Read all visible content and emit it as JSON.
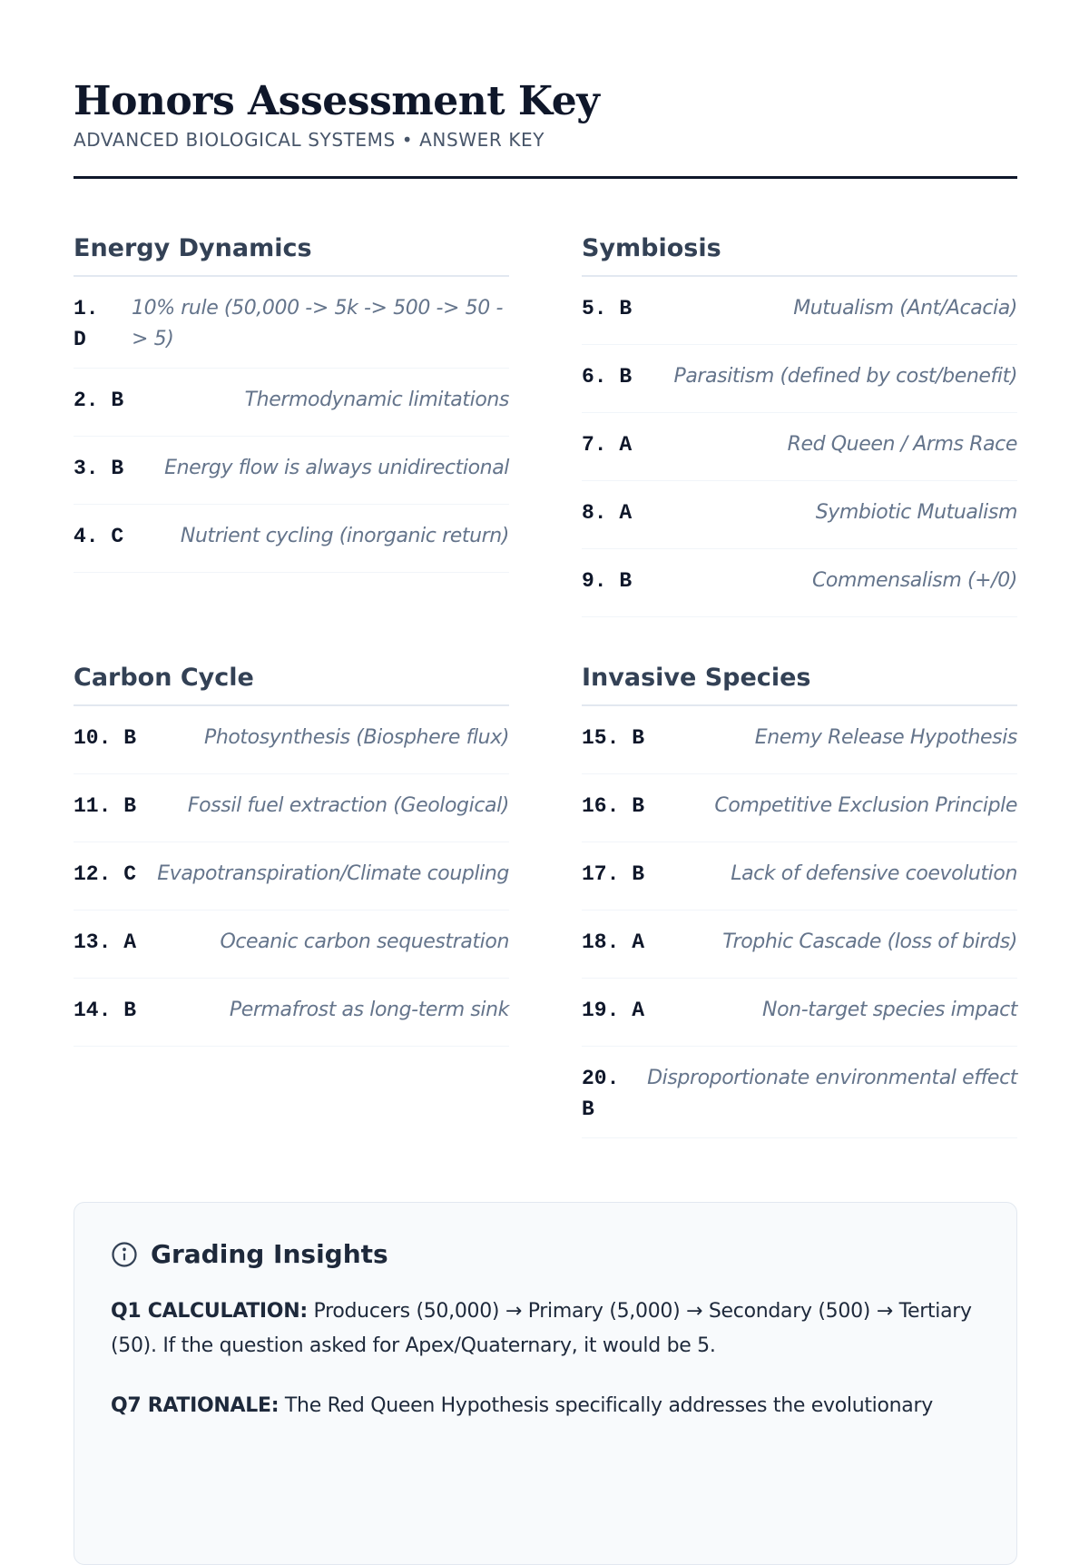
{
  "header": {
    "title": "Honors Assessment Key",
    "subtitle": "ADVANCED BIOLOGICAL SYSTEMS • ANSWER KEY"
  },
  "sections": [
    {
      "title": "Energy Dynamics",
      "items": [
        {
          "answer": "1. D",
          "explanation": "10% rule (50,000 -> 5k -> 500 -> 50 -> 5)"
        },
        {
          "answer": "2. B",
          "explanation": "Thermodynamic limitations"
        },
        {
          "answer": "3. B",
          "explanation": "Energy flow is always unidirectional"
        },
        {
          "answer": "4. C",
          "explanation": "Nutrient cycling (inorganic return)"
        }
      ]
    },
    {
      "title": "Symbiosis",
      "items": [
        {
          "answer": "5. B",
          "explanation": "Mutualism (Ant/Acacia)"
        },
        {
          "answer": "6. B",
          "explanation": "Parasitism (defined by cost/benefit)"
        },
        {
          "answer": "7. A",
          "explanation": "Red Queen / Arms Race"
        },
        {
          "answer": "8. A",
          "explanation": "Symbiotic Mutualism"
        },
        {
          "answer": "9. B",
          "explanation": "Commensalism (+/0)"
        }
      ]
    },
    {
      "title": "Carbon Cycle",
      "items": [
        {
          "answer": "10. B",
          "explanation": "Photosynthesis (Biosphere flux)"
        },
        {
          "answer": "11. B",
          "explanation": "Fossil fuel extraction (Geological)"
        },
        {
          "answer": "12. C",
          "explanation": "Evapotranspiration/Climate coupling"
        },
        {
          "answer": "13. A",
          "explanation": "Oceanic carbon sequestration"
        },
        {
          "answer": "14. B",
          "explanation": "Permafrost as long-term sink"
        }
      ]
    },
    {
      "title": "Invasive Species",
      "items": [
        {
          "answer": "15. B",
          "explanation": "Enemy Release Hypothesis"
        },
        {
          "answer": "16. B",
          "explanation": "Competitive Exclusion Principle"
        },
        {
          "answer": "17. B",
          "explanation": "Lack of defensive coevolution"
        },
        {
          "answer": "18. A",
          "explanation": "Trophic Cascade (loss of birds)"
        },
        {
          "answer": "19. A",
          "explanation": "Non-target species impact"
        },
        {
          "answer": "20. B",
          "explanation": "Disproportionate environmental effect"
        }
      ]
    }
  ],
  "insights": {
    "title": "Grading Insights",
    "icon": "info-icon",
    "notes": [
      {
        "label": "Q1 CALCULATION:",
        "text": " Producers (50,000) → Primary (5,000) → Secondary (500) → Tertiary (50). If the question asked for Apex/Quaternary, it would be 5."
      },
      {
        "label": "Q7 RATIONALE:",
        "text": " The Red Queen Hypothesis specifically addresses the evolutionary"
      }
    ]
  }
}
